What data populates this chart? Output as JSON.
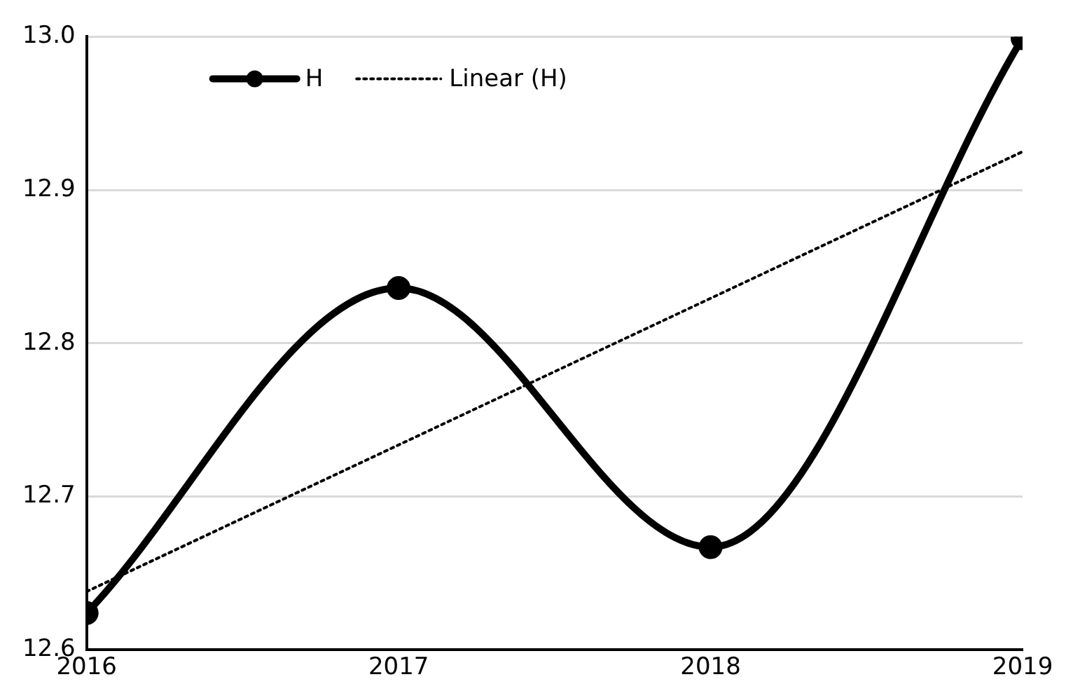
{
  "chart_data": {
    "type": "line",
    "x": [
      2016,
      2017,
      2018,
      2019
    ],
    "series": [
      {
        "name": "H",
        "color": "#000000",
        "values": [
          12.624,
          12.836,
          12.667,
          12.999
        ],
        "marker": "circle",
        "line_style": "solid"
      },
      {
        "name": "Linear (H)",
        "type": "line",
        "color": "#000000",
        "x": [
          2016,
          2019
        ],
        "values": [
          12.638,
          12.925
        ],
        "marker": "none",
        "line_style": "dotted"
      }
    ],
    "xlim": [
      2016,
      2019
    ],
    "xticks": [
      2016,
      2017,
      2018,
      2019
    ],
    "ylim": [
      12.6,
      13.0
    ],
    "yticks": [
      12.6,
      12.7,
      12.8,
      12.9,
      {
        "value": 13.0,
        "label": "13.0"
      }
    ],
    "grid": "y",
    "legend": "top left"
  }
}
